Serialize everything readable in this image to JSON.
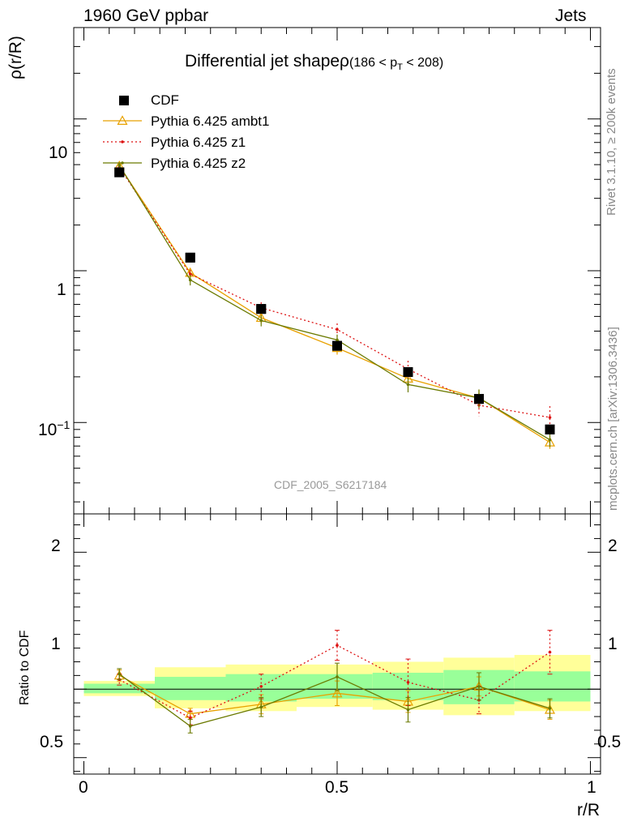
{
  "header": {
    "left": "1960 GeV ppbar",
    "right": "Jets"
  },
  "side_text": {
    "rivet": "Rivet 3.1.10, ≥ 200k events",
    "source": "mcplots.cern.ch [arXiv:1306.3436]"
  },
  "chart_data": [
    {
      "panel": "main",
      "type": "line",
      "title_main": "Differential jet shapeρ",
      "title_sub": "(186 < p",
      "title_sub_index": "T",
      "title_sub_end": " < 208)",
      "ylabel": "ρ(r/R)",
      "analysis_label": "CDF_2005_S6217184",
      "yscale": "log",
      "xlim": [
        -0.02,
        1.02
      ],
      "ylim": [
        0.025,
        40
      ],
      "ytick_labels": {
        "ten": "10",
        "one": "1",
        "tenth_base": "10",
        "tenth_exp": "−1"
      },
      "x": [
        0.07,
        0.21,
        0.35,
        0.5,
        0.64,
        0.78,
        0.92
      ],
      "series": [
        {
          "name": "CDF",
          "color": "#000000",
          "values": [
            4.45,
            1.22,
            0.56,
            0.32,
            0.215,
            0.143,
            0.09
          ]
        },
        {
          "name": "Pythia 6.425 ambt1",
          "color": "#E8A100",
          "values": [
            4.9,
            0.97,
            0.49,
            0.31,
            0.195,
            0.145,
            0.074
          ],
          "err": [
            0.2,
            0.06,
            0.04,
            0.03,
            0.02,
            0.02,
            0.007
          ]
        },
        {
          "name": "Pythia 6.425 z1",
          "color": "#DD1111",
          "values": [
            4.8,
            0.95,
            0.57,
            0.41,
            0.225,
            0.13,
            0.108
          ],
          "err": [
            0.2,
            0.06,
            0.05,
            0.04,
            0.03,
            0.02,
            0.02
          ]
        },
        {
          "name": "Pythia 6.425 z2",
          "color": "#6B7A00",
          "values": [
            4.95,
            0.87,
            0.47,
            0.35,
            0.178,
            0.145,
            0.077
          ],
          "err": [
            0.2,
            0.07,
            0.04,
            0.03,
            0.02,
            0.02,
            0.008
          ]
        }
      ]
    },
    {
      "panel": "ratio",
      "type": "line",
      "ylabel": "Ratio to CDF",
      "xlabel": "r/R",
      "xlim": [
        -0.02,
        1.02
      ],
      "ylim": [
        0.38,
        2.28
      ],
      "x_ticks": [
        "0",
        "0.5",
        "1"
      ],
      "y_ticks": [
        "0.5",
        "1",
        "2"
      ],
      "x": [
        0.07,
        0.21,
        0.35,
        0.5,
        0.64,
        0.78,
        0.92
      ],
      "bins": [
        [
          0.0,
          0.14
        ],
        [
          0.14,
          0.28
        ],
        [
          0.28,
          0.42
        ],
        [
          0.42,
          0.57
        ],
        [
          0.57,
          0.71
        ],
        [
          0.71,
          0.85
        ],
        [
          0.85,
          1.0
        ]
      ],
      "band_outer": [
        [
          0.95,
          1.06
        ],
        [
          0.86,
          1.16
        ],
        [
          0.84,
          1.18
        ],
        [
          0.87,
          1.18
        ],
        [
          0.85,
          1.2
        ],
        [
          0.81,
          1.23
        ],
        [
          0.84,
          1.25
        ]
      ],
      "band_inner": [
        [
          0.97,
          1.04
        ],
        [
          0.92,
          1.09
        ],
        [
          0.91,
          1.11
        ],
        [
          0.93,
          1.11
        ],
        [
          0.92,
          1.12
        ],
        [
          0.89,
          1.14
        ],
        [
          0.91,
          1.13
        ]
      ],
      "series": [
        {
          "name": "Pythia 6.425 ambt1",
          "color": "#E8A100",
          "values": [
            1.1,
            0.82,
            0.89,
            0.97,
            0.91,
            1.02,
            0.85
          ],
          "err": [
            0.04,
            0.04,
            0.07,
            0.09,
            0.08,
            0.07,
            0.07
          ]
        },
        {
          "name": "Pythia 6.425 z1",
          "color": "#DD1111",
          "values": [
            1.07,
            0.79,
            1.02,
            1.32,
            1.05,
            0.92,
            1.27
          ],
          "err": [
            0.04,
            0.05,
            0.09,
            0.11,
            0.17,
            0.1,
            0.16
          ]
        },
        {
          "name": "Pythia 6.425 z2",
          "color": "#6B7A00",
          "values": [
            1.11,
            0.73,
            0.87,
            1.09,
            0.85,
            1.02,
            0.86
          ],
          "err": [
            0.04,
            0.05,
            0.07,
            0.1,
            0.09,
            0.1,
            0.07
          ]
        }
      ]
    }
  ]
}
